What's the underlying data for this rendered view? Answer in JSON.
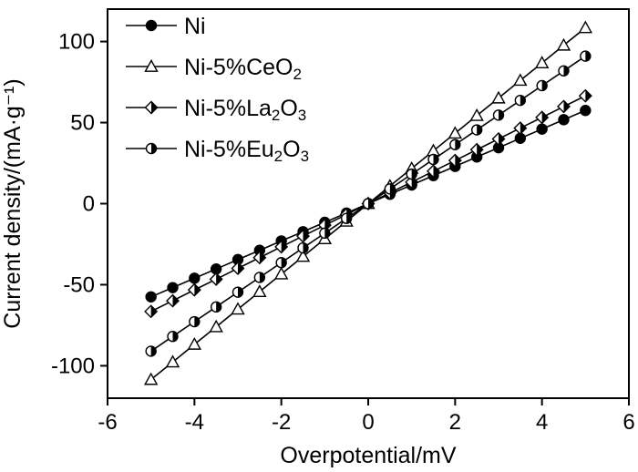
{
  "chart_data": {
    "type": "line",
    "title": "",
    "xlabel": "Overpotential/mV",
    "ylabel": "Current density/(mA·g⁻¹)",
    "xlim": [
      -6,
      6
    ],
    "ylim": [
      -120,
      120
    ],
    "xticks": [
      -6,
      -4,
      -2,
      0,
      2,
      4,
      6
    ],
    "yticks": [
      -100,
      -50,
      0,
      50,
      100
    ],
    "xtick_labels": [
      "-6",
      "-4",
      "-2",
      "0",
      "2",
      "4",
      "6"
    ],
    "ytick_labels": [
      "-100",
      "-50",
      "0",
      "50",
      "100"
    ],
    "grid": false,
    "legend_position": "top-left",
    "x": [
      -5,
      -4.5,
      -4,
      -3.5,
      -3,
      -2.5,
      -2,
      -1.5,
      -1,
      -0.5,
      0,
      0.5,
      1,
      1.5,
      2,
      2.5,
      3,
      3.5,
      4,
      4.5,
      5
    ],
    "series": [
      {
        "name": "Ni",
        "legend_parts": [
          {
            "t": "Ni"
          }
        ],
        "marker": "circle-filled",
        "values": [
          -57.5,
          -51.8,
          -46,
          -40.3,
          -34.5,
          -28.8,
          -23,
          -17.3,
          -11.5,
          -5.8,
          0,
          5.8,
          11.5,
          17.3,
          23,
          28.8,
          34.5,
          40.3,
          46,
          51.8,
          57.5
        ]
      },
      {
        "name": "Ni-5%CeO2",
        "legend_parts": [
          {
            "t": "Ni-5%CeO"
          },
          {
            "t": "2",
            "sub": true
          }
        ],
        "marker": "triangle-open",
        "values": [
          -108.5,
          -97.7,
          -86.8,
          -76,
          -65.1,
          -54.3,
          -43.4,
          -32.6,
          -21.7,
          -10.9,
          0,
          10.9,
          21.7,
          32.6,
          43.4,
          54.3,
          65.1,
          76,
          86.8,
          97.7,
          108.5
        ]
      },
      {
        "name": "Ni-5%La2O3",
        "legend_parts": [
          {
            "t": "Ni-5%La"
          },
          {
            "t": "2",
            "sub": true
          },
          {
            "t": "O"
          },
          {
            "t": "3",
            "sub": true
          }
        ],
        "marker": "diamond-half",
        "values": [
          -66.5,
          -59.9,
          -53.2,
          -46.6,
          -39.9,
          -33.3,
          -26.6,
          -20,
          -13.3,
          -6.7,
          0,
          6.7,
          13.3,
          20,
          26.6,
          33.3,
          39.9,
          46.6,
          53.2,
          59.9,
          66.5
        ]
      },
      {
        "name": "Ni-5%Eu2O3",
        "legend_parts": [
          {
            "t": "Ni-5%Eu"
          },
          {
            "t": "2",
            "sub": true
          },
          {
            "t": "O"
          },
          {
            "t": "3",
            "sub": true
          }
        ],
        "marker": "circle-half",
        "values": [
          -91,
          -81.9,
          -72.8,
          -63.7,
          -54.6,
          -45.5,
          -36.4,
          -27.3,
          -18.2,
          -9.1,
          0,
          9.1,
          18.2,
          27.3,
          36.4,
          45.5,
          54.6,
          63.7,
          72.8,
          81.9,
          91
        ]
      }
    ]
  }
}
